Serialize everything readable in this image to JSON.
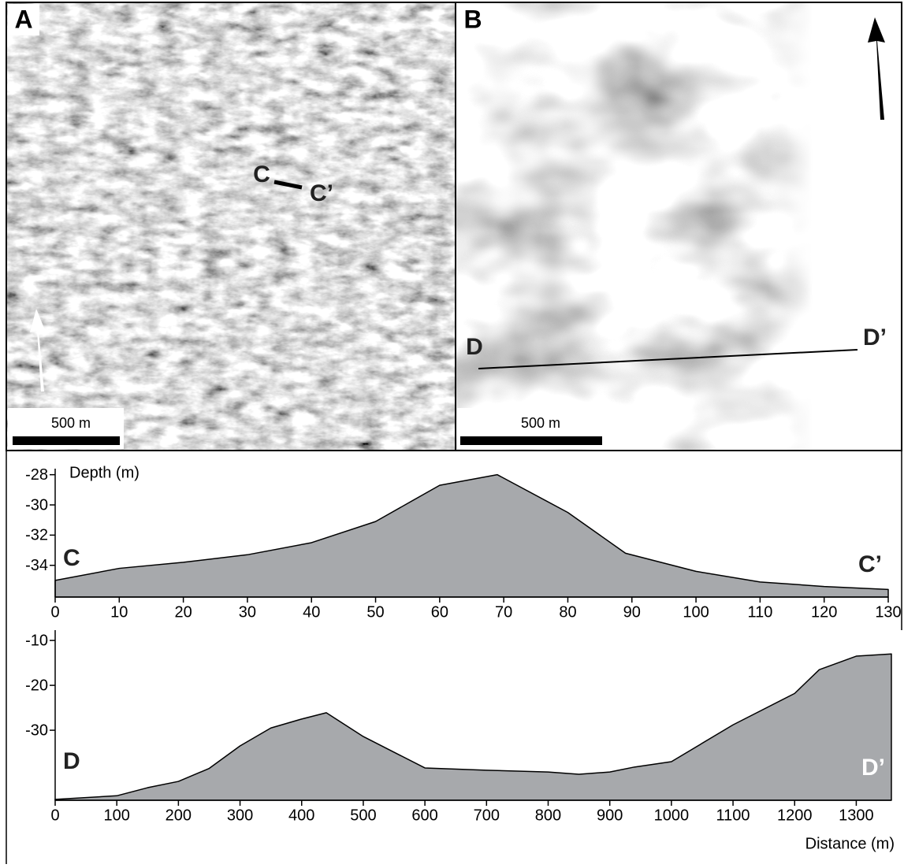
{
  "maps": [
    {
      "label": "A",
      "scale": "500 m",
      "markers": [
        "C",
        "C’"
      ]
    },
    {
      "label": "B",
      "scale": "500 m",
      "markers": [
        "D",
        "D’"
      ]
    }
  ],
  "chart_data": [
    {
      "type": "area",
      "y_label": "Depth (m)",
      "annotations": [
        "C",
        "C’"
      ],
      "x": [
        0,
        10,
        20,
        30,
        40,
        50,
        60,
        69,
        80,
        89,
        100,
        110,
        120,
        130
      ],
      "series": [
        {
          "color": "#a7a9ac",
          "values": [
            -35.0,
            -34.2,
            -33.8,
            -33.3,
            -32.5,
            -31.1,
            -28.7,
            -28.0,
            -30.5,
            -33.2,
            -34.4,
            -35.1,
            -35.4,
            -35.6
          ]
        }
      ],
      "xlim": [
        0,
        130
      ],
      "ylim": [
        -36.1,
        -27.6
      ],
      "xticks": [
        0,
        10,
        20,
        30,
        40,
        50,
        60,
        70,
        80,
        90,
        100,
        110,
        120,
        130
      ],
      "yticks": [
        -28,
        -30,
        -32,
        -34
      ]
    },
    {
      "type": "area",
      "x_label": "Distance (m)",
      "annotations": [
        "D",
        "D’"
      ],
      "x": [
        0,
        100,
        150,
        200,
        250,
        300,
        350,
        400,
        440,
        500,
        600,
        700,
        800,
        850,
        900,
        940,
        1000,
        1100,
        1200,
        1240,
        1300,
        1357
      ],
      "series": [
        {
          "color": "#a7a9ac",
          "values": [
            -45.4,
            -44.6,
            -42.8,
            -41.4,
            -38.5,
            -33.5,
            -29.5,
            -27.5,
            -26.1,
            -31.4,
            -38.4,
            -38.9,
            -39.3,
            -39.8,
            -39.3,
            -38.2,
            -37.0,
            -28.8,
            -21.8,
            -16.5,
            -13.5,
            -13.0
          ]
        }
      ],
      "xlim": [
        0,
        1357
      ],
      "ylim": [
        -45.6,
        -7.7
      ],
      "xticks": [
        0,
        100,
        200,
        300,
        400,
        500,
        600,
        700,
        800,
        900,
        1000,
        1100,
        1200,
        1300
      ],
      "yticks": [
        -10,
        -20,
        -30
      ]
    }
  ]
}
